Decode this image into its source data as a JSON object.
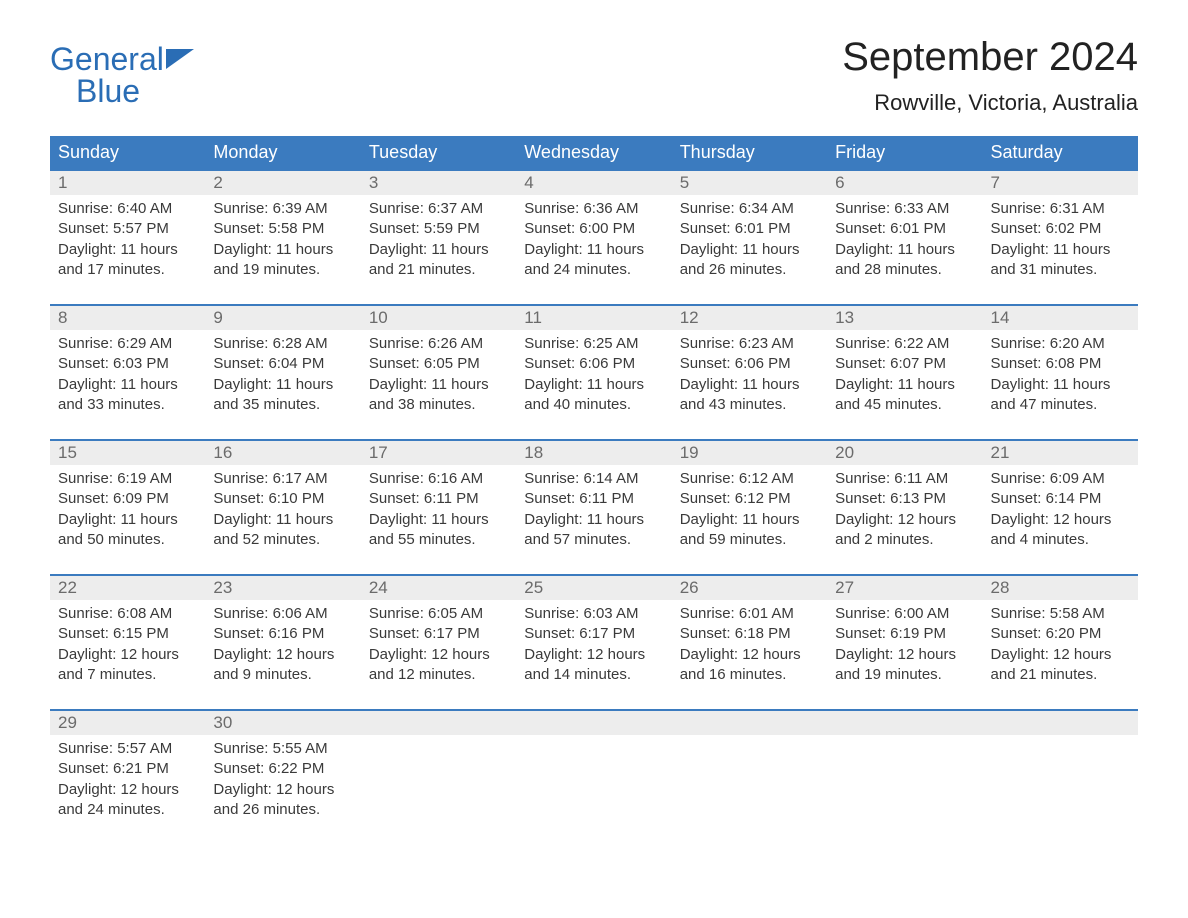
{
  "brand": {
    "line1": "General",
    "line2": "Blue"
  },
  "header": {
    "title": "September 2024",
    "subtitle": "Rowville, Victoria, Australia"
  },
  "colors": {
    "header_bg": "#3b7bbf",
    "header_text": "#ffffff",
    "daynum_bg": "#ededed",
    "daynum_text": "#6b6b6b",
    "body_text": "#3a3a3a",
    "brand_color": "#2a6db5",
    "week_border": "#3b7bbf",
    "page_bg": "#ffffff"
  },
  "typography": {
    "title_fontsize": 40,
    "subtitle_fontsize": 22,
    "header_fontsize": 18,
    "daynum_fontsize": 17,
    "body_fontsize": 15
  },
  "calendar": {
    "type": "table",
    "columns": [
      "Sunday",
      "Monday",
      "Tuesday",
      "Wednesday",
      "Thursday",
      "Friday",
      "Saturday"
    ],
    "weeks": [
      [
        {
          "day": "1",
          "sunrise": "Sunrise: 6:40 AM",
          "sunset": "Sunset: 5:57 PM",
          "daylight": "Daylight: 11 hours and 17 minutes."
        },
        {
          "day": "2",
          "sunrise": "Sunrise: 6:39 AM",
          "sunset": "Sunset: 5:58 PM",
          "daylight": "Daylight: 11 hours and 19 minutes."
        },
        {
          "day": "3",
          "sunrise": "Sunrise: 6:37 AM",
          "sunset": "Sunset: 5:59 PM",
          "daylight": "Daylight: 11 hours and 21 minutes."
        },
        {
          "day": "4",
          "sunrise": "Sunrise: 6:36 AM",
          "sunset": "Sunset: 6:00 PM",
          "daylight": "Daylight: 11 hours and 24 minutes."
        },
        {
          "day": "5",
          "sunrise": "Sunrise: 6:34 AM",
          "sunset": "Sunset: 6:01 PM",
          "daylight": "Daylight: 11 hours and 26 minutes."
        },
        {
          "day": "6",
          "sunrise": "Sunrise: 6:33 AM",
          "sunset": "Sunset: 6:01 PM",
          "daylight": "Daylight: 11 hours and 28 minutes."
        },
        {
          "day": "7",
          "sunrise": "Sunrise: 6:31 AM",
          "sunset": "Sunset: 6:02 PM",
          "daylight": "Daylight: 11 hours and 31 minutes."
        }
      ],
      [
        {
          "day": "8",
          "sunrise": "Sunrise: 6:29 AM",
          "sunset": "Sunset: 6:03 PM",
          "daylight": "Daylight: 11 hours and 33 minutes."
        },
        {
          "day": "9",
          "sunrise": "Sunrise: 6:28 AM",
          "sunset": "Sunset: 6:04 PM",
          "daylight": "Daylight: 11 hours and 35 minutes."
        },
        {
          "day": "10",
          "sunrise": "Sunrise: 6:26 AM",
          "sunset": "Sunset: 6:05 PM",
          "daylight": "Daylight: 11 hours and 38 minutes."
        },
        {
          "day": "11",
          "sunrise": "Sunrise: 6:25 AM",
          "sunset": "Sunset: 6:06 PM",
          "daylight": "Daylight: 11 hours and 40 minutes."
        },
        {
          "day": "12",
          "sunrise": "Sunrise: 6:23 AM",
          "sunset": "Sunset: 6:06 PM",
          "daylight": "Daylight: 11 hours and 43 minutes."
        },
        {
          "day": "13",
          "sunrise": "Sunrise: 6:22 AM",
          "sunset": "Sunset: 6:07 PM",
          "daylight": "Daylight: 11 hours and 45 minutes."
        },
        {
          "day": "14",
          "sunrise": "Sunrise: 6:20 AM",
          "sunset": "Sunset: 6:08 PM",
          "daylight": "Daylight: 11 hours and 47 minutes."
        }
      ],
      [
        {
          "day": "15",
          "sunrise": "Sunrise: 6:19 AM",
          "sunset": "Sunset: 6:09 PM",
          "daylight": "Daylight: 11 hours and 50 minutes."
        },
        {
          "day": "16",
          "sunrise": "Sunrise: 6:17 AM",
          "sunset": "Sunset: 6:10 PM",
          "daylight": "Daylight: 11 hours and 52 minutes."
        },
        {
          "day": "17",
          "sunrise": "Sunrise: 6:16 AM",
          "sunset": "Sunset: 6:11 PM",
          "daylight": "Daylight: 11 hours and 55 minutes."
        },
        {
          "day": "18",
          "sunrise": "Sunrise: 6:14 AM",
          "sunset": "Sunset: 6:11 PM",
          "daylight": "Daylight: 11 hours and 57 minutes."
        },
        {
          "day": "19",
          "sunrise": "Sunrise: 6:12 AM",
          "sunset": "Sunset: 6:12 PM",
          "daylight": "Daylight: 11 hours and 59 minutes."
        },
        {
          "day": "20",
          "sunrise": "Sunrise: 6:11 AM",
          "sunset": "Sunset: 6:13 PM",
          "daylight": "Daylight: 12 hours and 2 minutes."
        },
        {
          "day": "21",
          "sunrise": "Sunrise: 6:09 AM",
          "sunset": "Sunset: 6:14 PM",
          "daylight": "Daylight: 12 hours and 4 minutes."
        }
      ],
      [
        {
          "day": "22",
          "sunrise": "Sunrise: 6:08 AM",
          "sunset": "Sunset: 6:15 PM",
          "daylight": "Daylight: 12 hours and 7 minutes."
        },
        {
          "day": "23",
          "sunrise": "Sunrise: 6:06 AM",
          "sunset": "Sunset: 6:16 PM",
          "daylight": "Daylight: 12 hours and 9 minutes."
        },
        {
          "day": "24",
          "sunrise": "Sunrise: 6:05 AM",
          "sunset": "Sunset: 6:17 PM",
          "daylight": "Daylight: 12 hours and 12 minutes."
        },
        {
          "day": "25",
          "sunrise": "Sunrise: 6:03 AM",
          "sunset": "Sunset: 6:17 PM",
          "daylight": "Daylight: 12 hours and 14 minutes."
        },
        {
          "day": "26",
          "sunrise": "Sunrise: 6:01 AM",
          "sunset": "Sunset: 6:18 PM",
          "daylight": "Daylight: 12 hours and 16 minutes."
        },
        {
          "day": "27",
          "sunrise": "Sunrise: 6:00 AM",
          "sunset": "Sunset: 6:19 PM",
          "daylight": "Daylight: 12 hours and 19 minutes."
        },
        {
          "day": "28",
          "sunrise": "Sunrise: 5:58 AM",
          "sunset": "Sunset: 6:20 PM",
          "daylight": "Daylight: 12 hours and 21 minutes."
        }
      ],
      [
        {
          "day": "29",
          "sunrise": "Sunrise: 5:57 AM",
          "sunset": "Sunset: 6:21 PM",
          "daylight": "Daylight: 12 hours and 24 minutes."
        },
        {
          "day": "30",
          "sunrise": "Sunrise: 5:55 AM",
          "sunset": "Sunset: 6:22 PM",
          "daylight": "Daylight: 12 hours and 26 minutes."
        },
        null,
        null,
        null,
        null,
        null
      ]
    ]
  }
}
